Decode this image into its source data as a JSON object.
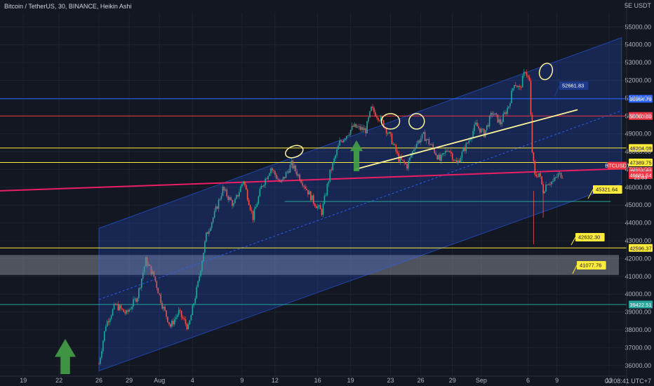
{
  "header": {
    "title": "Bitcoin / TetherUS, 30, BINANCE, Heikin Ashi",
    "scale_label": "5E USDT",
    "time_label": "00:08:41 UTC+7"
  },
  "chart_data": {
    "type": "candlestick",
    "title": "Bitcoin / TetherUS, 30, BINANCE, Heikin Ashi",
    "ylim": [
      35400,
      55800
    ],
    "x_ticks": [
      "19",
      "22",
      "26",
      "29",
      "Aug",
      "4",
      "9",
      "12",
      "16",
      "19",
      "23",
      "26",
      "29",
      "Sep",
      "6",
      "9",
      "13"
    ],
    "y_ticks": [
      "55000.00",
      "54000.00",
      "53000.00",
      "52000.00",
      "51000.00",
      "50000.00",
      "49000.00",
      "48000.00",
      "47000.00",
      "46000.00",
      "45000.00",
      "44000.00",
      "43000.00",
      "42000.00",
      "41000.00",
      "40000.00",
      "39000.00",
      "38000.00",
      "37000.00",
      "36000.00"
    ],
    "path_points": [
      {
        "x": 0.0,
        "y": 36100
      },
      {
        "x": 0.5,
        "y": 38300
      },
      {
        "x": 1.2,
        "y": 39400
      },
      {
        "x": 2.0,
        "y": 38900
      },
      {
        "x": 2.8,
        "y": 39900
      },
      {
        "x": 3.4,
        "y": 41900
      },
      {
        "x": 4.0,
        "y": 41000
      },
      {
        "x": 4.6,
        "y": 39400
      },
      {
        "x": 5.2,
        "y": 38200
      },
      {
        "x": 5.8,
        "y": 39000
      },
      {
        "x": 6.5,
        "y": 38100
      },
      {
        "x": 7.2,
        "y": 40600
      },
      {
        "x": 7.8,
        "y": 43300
      },
      {
        "x": 8.4,
        "y": 44500
      },
      {
        "x": 9.0,
        "y": 45900
      },
      {
        "x": 9.8,
        "y": 45000
      },
      {
        "x": 10.5,
        "y": 46400
      },
      {
        "x": 11.2,
        "y": 44300
      },
      {
        "x": 11.8,
        "y": 46000
      },
      {
        "x": 12.5,
        "y": 47100
      },
      {
        "x": 13.2,
        "y": 46200
      },
      {
        "x": 14.0,
        "y": 47300
      },
      {
        "x": 14.8,
        "y": 46300
      },
      {
        "x": 15.6,
        "y": 45200
      },
      {
        "x": 16.2,
        "y": 44600
      },
      {
        "x": 16.8,
        "y": 46800
      },
      {
        "x": 17.5,
        "y": 48500
      },
      {
        "x": 18.5,
        "y": 49400
      },
      {
        "x": 19.4,
        "y": 49200
      },
      {
        "x": 19.8,
        "y": 50400
      },
      {
        "x": 20.5,
        "y": 49800
      },
      {
        "x": 21.2,
        "y": 48800
      },
      {
        "x": 21.8,
        "y": 47600
      },
      {
        "x": 22.4,
        "y": 47200
      },
      {
        "x": 23.0,
        "y": 48400
      },
      {
        "x": 23.6,
        "y": 48900
      },
      {
        "x": 24.2,
        "y": 48300
      },
      {
        "x": 24.8,
        "y": 47500
      },
      {
        "x": 25.4,
        "y": 48200
      },
      {
        "x": 26.0,
        "y": 47300
      },
      {
        "x": 26.8,
        "y": 48500
      },
      {
        "x": 27.4,
        "y": 49500
      },
      {
        "x": 28.0,
        "y": 49000
      },
      {
        "x": 28.6,
        "y": 50200
      },
      {
        "x": 29.2,
        "y": 49600
      },
      {
        "x": 29.8,
        "y": 50600
      },
      {
        "x": 30.2,
        "y": 51900
      },
      {
        "x": 30.6,
        "y": 51500
      },
      {
        "x": 31.0,
        "y": 52600
      },
      {
        "x": 31.3,
        "y": 51900
      },
      {
        "x": 31.5,
        "y": 48000
      },
      {
        "x": 31.7,
        "y": 46600
      },
      {
        "x": 32.0,
        "y": 46800
      },
      {
        "x": 32.3,
        "y": 45800
      },
      {
        "x": 32.6,
        "y": 46300
      },
      {
        "x": 33.0,
        "y": 46300
      },
      {
        "x": 33.4,
        "y": 46700
      },
      {
        "x": 33.8,
        "y": 46700
      }
    ],
    "channel": {
      "lower": [
        {
          "x": 0.0,
          "y": 35700
        },
        {
          "x": 38.0,
          "y": 46200
        }
      ],
      "upper": [
        {
          "x": 0.0,
          "y": 43700
        },
        {
          "x": 38.0,
          "y": 54400
        }
      ]
    },
    "horizontal_levels": [
      {
        "price": 50964.79,
        "label": "50964.79",
        "color": "#2962ff"
      },
      {
        "price": 50000.0,
        "label": "50000.00",
        "color": "#f23645"
      },
      {
        "price": 48204.09,
        "label": "48204.09",
        "color": "#ffeb3b"
      },
      {
        "price": 47389.75,
        "label": "47389.75",
        "color": "#ffeb3b"
      },
      {
        "price": 42596.37,
        "label": "42596.37",
        "color": "#ffeb3b"
      },
      {
        "price": 39422.51,
        "label": "39422.51",
        "color": "#26a69a"
      }
    ],
    "price_tags": [
      {
        "price": 46915.82,
        "label": "46915.82",
        "color": "#f23645"
      },
      {
        "price": 46681.54,
        "label": "46681.54",
        "color": "#f23645"
      }
    ],
    "symbol_tag": "BTCUSDT",
    "countdown": "21:03",
    "zone": {
      "from": 41077.76,
      "to": 42200
    },
    "callouts": [
      "52661.83",
      "45321.64",
      "42632.30",
      "41077.76"
    ]
  }
}
